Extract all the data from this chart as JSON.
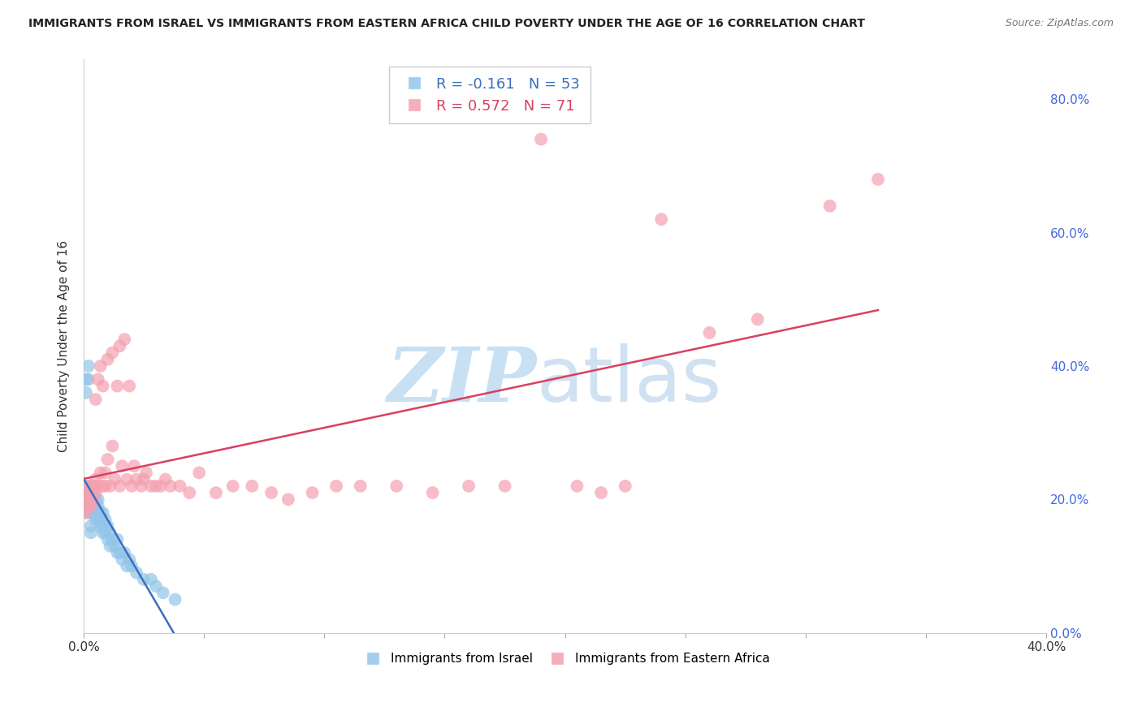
{
  "title": "IMMIGRANTS FROM ISRAEL VS IMMIGRANTS FROM EASTERN AFRICA CHILD POVERTY UNDER THE AGE OF 16 CORRELATION CHART",
  "source": "Source: ZipAtlas.com",
  "ylabel": "Child Poverty Under the Age of 16",
  "xlim": [
    0.0,
    0.4
  ],
  "ylim": [
    0.0,
    0.86
  ],
  "israel_R": -0.161,
  "israel_N": 53,
  "africa_R": 0.572,
  "africa_N": 71,
  "israel_color": "#92C5E8",
  "africa_color": "#F4A0B0",
  "israel_line_color": "#3A6FBF",
  "africa_line_color": "#D94060",
  "background_color": "#ffffff",
  "watermark_zip_color": "#C8E0F4",
  "watermark_atlas_color": "#C8DCF0",
  "legend_israel_label": "Immigrants from Israel",
  "legend_africa_label": "Immigrants from Eastern Africa",
  "legend_R_color_israel": "#3A6FBF",
  "legend_R_color_africa": "#D94060",
  "y_right_tick_color": "#4169E1",
  "grid_color": "#dddddd",
  "title_color": "#222222",
  "source_color": "#777777",
  "israel_x": [
    0.0005,
    0.001,
    0.001,
    0.001,
    0.0015,
    0.002,
    0.002,
    0.002,
    0.002,
    0.003,
    0.003,
    0.003,
    0.003,
    0.003,
    0.004,
    0.004,
    0.004,
    0.004,
    0.005,
    0.005,
    0.005,
    0.005,
    0.006,
    0.006,
    0.006,
    0.007,
    0.007,
    0.007,
    0.008,
    0.008,
    0.008,
    0.009,
    0.009,
    0.01,
    0.01,
    0.011,
    0.011,
    0.012,
    0.013,
    0.014,
    0.014,
    0.015,
    0.016,
    0.017,
    0.018,
    0.019,
    0.02,
    0.022,
    0.025,
    0.028,
    0.03,
    0.033,
    0.038
  ],
  "israel_y": [
    0.2,
    0.38,
    0.36,
    0.22,
    0.2,
    0.4,
    0.38,
    0.19,
    0.18,
    0.21,
    0.19,
    0.18,
    0.16,
    0.15,
    0.22,
    0.21,
    0.2,
    0.18,
    0.2,
    0.19,
    0.18,
    0.17,
    0.2,
    0.19,
    0.17,
    0.18,
    0.17,
    0.16,
    0.18,
    0.16,
    0.15,
    0.17,
    0.15,
    0.16,
    0.14,
    0.15,
    0.13,
    0.14,
    0.13,
    0.14,
    0.12,
    0.12,
    0.11,
    0.12,
    0.1,
    0.11,
    0.1,
    0.09,
    0.08,
    0.08,
    0.07,
    0.06,
    0.05
  ],
  "africa_x": [
    0.0005,
    0.001,
    0.001,
    0.0015,
    0.002,
    0.002,
    0.002,
    0.003,
    0.003,
    0.003,
    0.004,
    0.004,
    0.005,
    0.005,
    0.005,
    0.006,
    0.006,
    0.007,
    0.007,
    0.008,
    0.008,
    0.009,
    0.009,
    0.01,
    0.01,
    0.011,
    0.012,
    0.012,
    0.013,
    0.014,
    0.015,
    0.015,
    0.016,
    0.017,
    0.018,
    0.019,
    0.02,
    0.021,
    0.022,
    0.024,
    0.025,
    0.026,
    0.028,
    0.03,
    0.032,
    0.034,
    0.036,
    0.04,
    0.044,
    0.048,
    0.055,
    0.062,
    0.07,
    0.078,
    0.085,
    0.095,
    0.105,
    0.115,
    0.13,
    0.145,
    0.16,
    0.175,
    0.19,
    0.205,
    0.215,
    0.225,
    0.24,
    0.26,
    0.28,
    0.31,
    0.33
  ],
  "africa_y": [
    0.19,
    0.2,
    0.18,
    0.21,
    0.2,
    0.22,
    0.19,
    0.22,
    0.21,
    0.19,
    0.22,
    0.2,
    0.23,
    0.21,
    0.35,
    0.22,
    0.38,
    0.24,
    0.4,
    0.22,
    0.37,
    0.22,
    0.24,
    0.26,
    0.41,
    0.22,
    0.28,
    0.42,
    0.23,
    0.37,
    0.22,
    0.43,
    0.25,
    0.44,
    0.23,
    0.37,
    0.22,
    0.25,
    0.23,
    0.22,
    0.23,
    0.24,
    0.22,
    0.22,
    0.22,
    0.23,
    0.22,
    0.22,
    0.21,
    0.24,
    0.21,
    0.22,
    0.22,
    0.21,
    0.2,
    0.21,
    0.22,
    0.22,
    0.22,
    0.21,
    0.22,
    0.22,
    0.74,
    0.22,
    0.21,
    0.22,
    0.62,
    0.45,
    0.47,
    0.64,
    0.68
  ]
}
